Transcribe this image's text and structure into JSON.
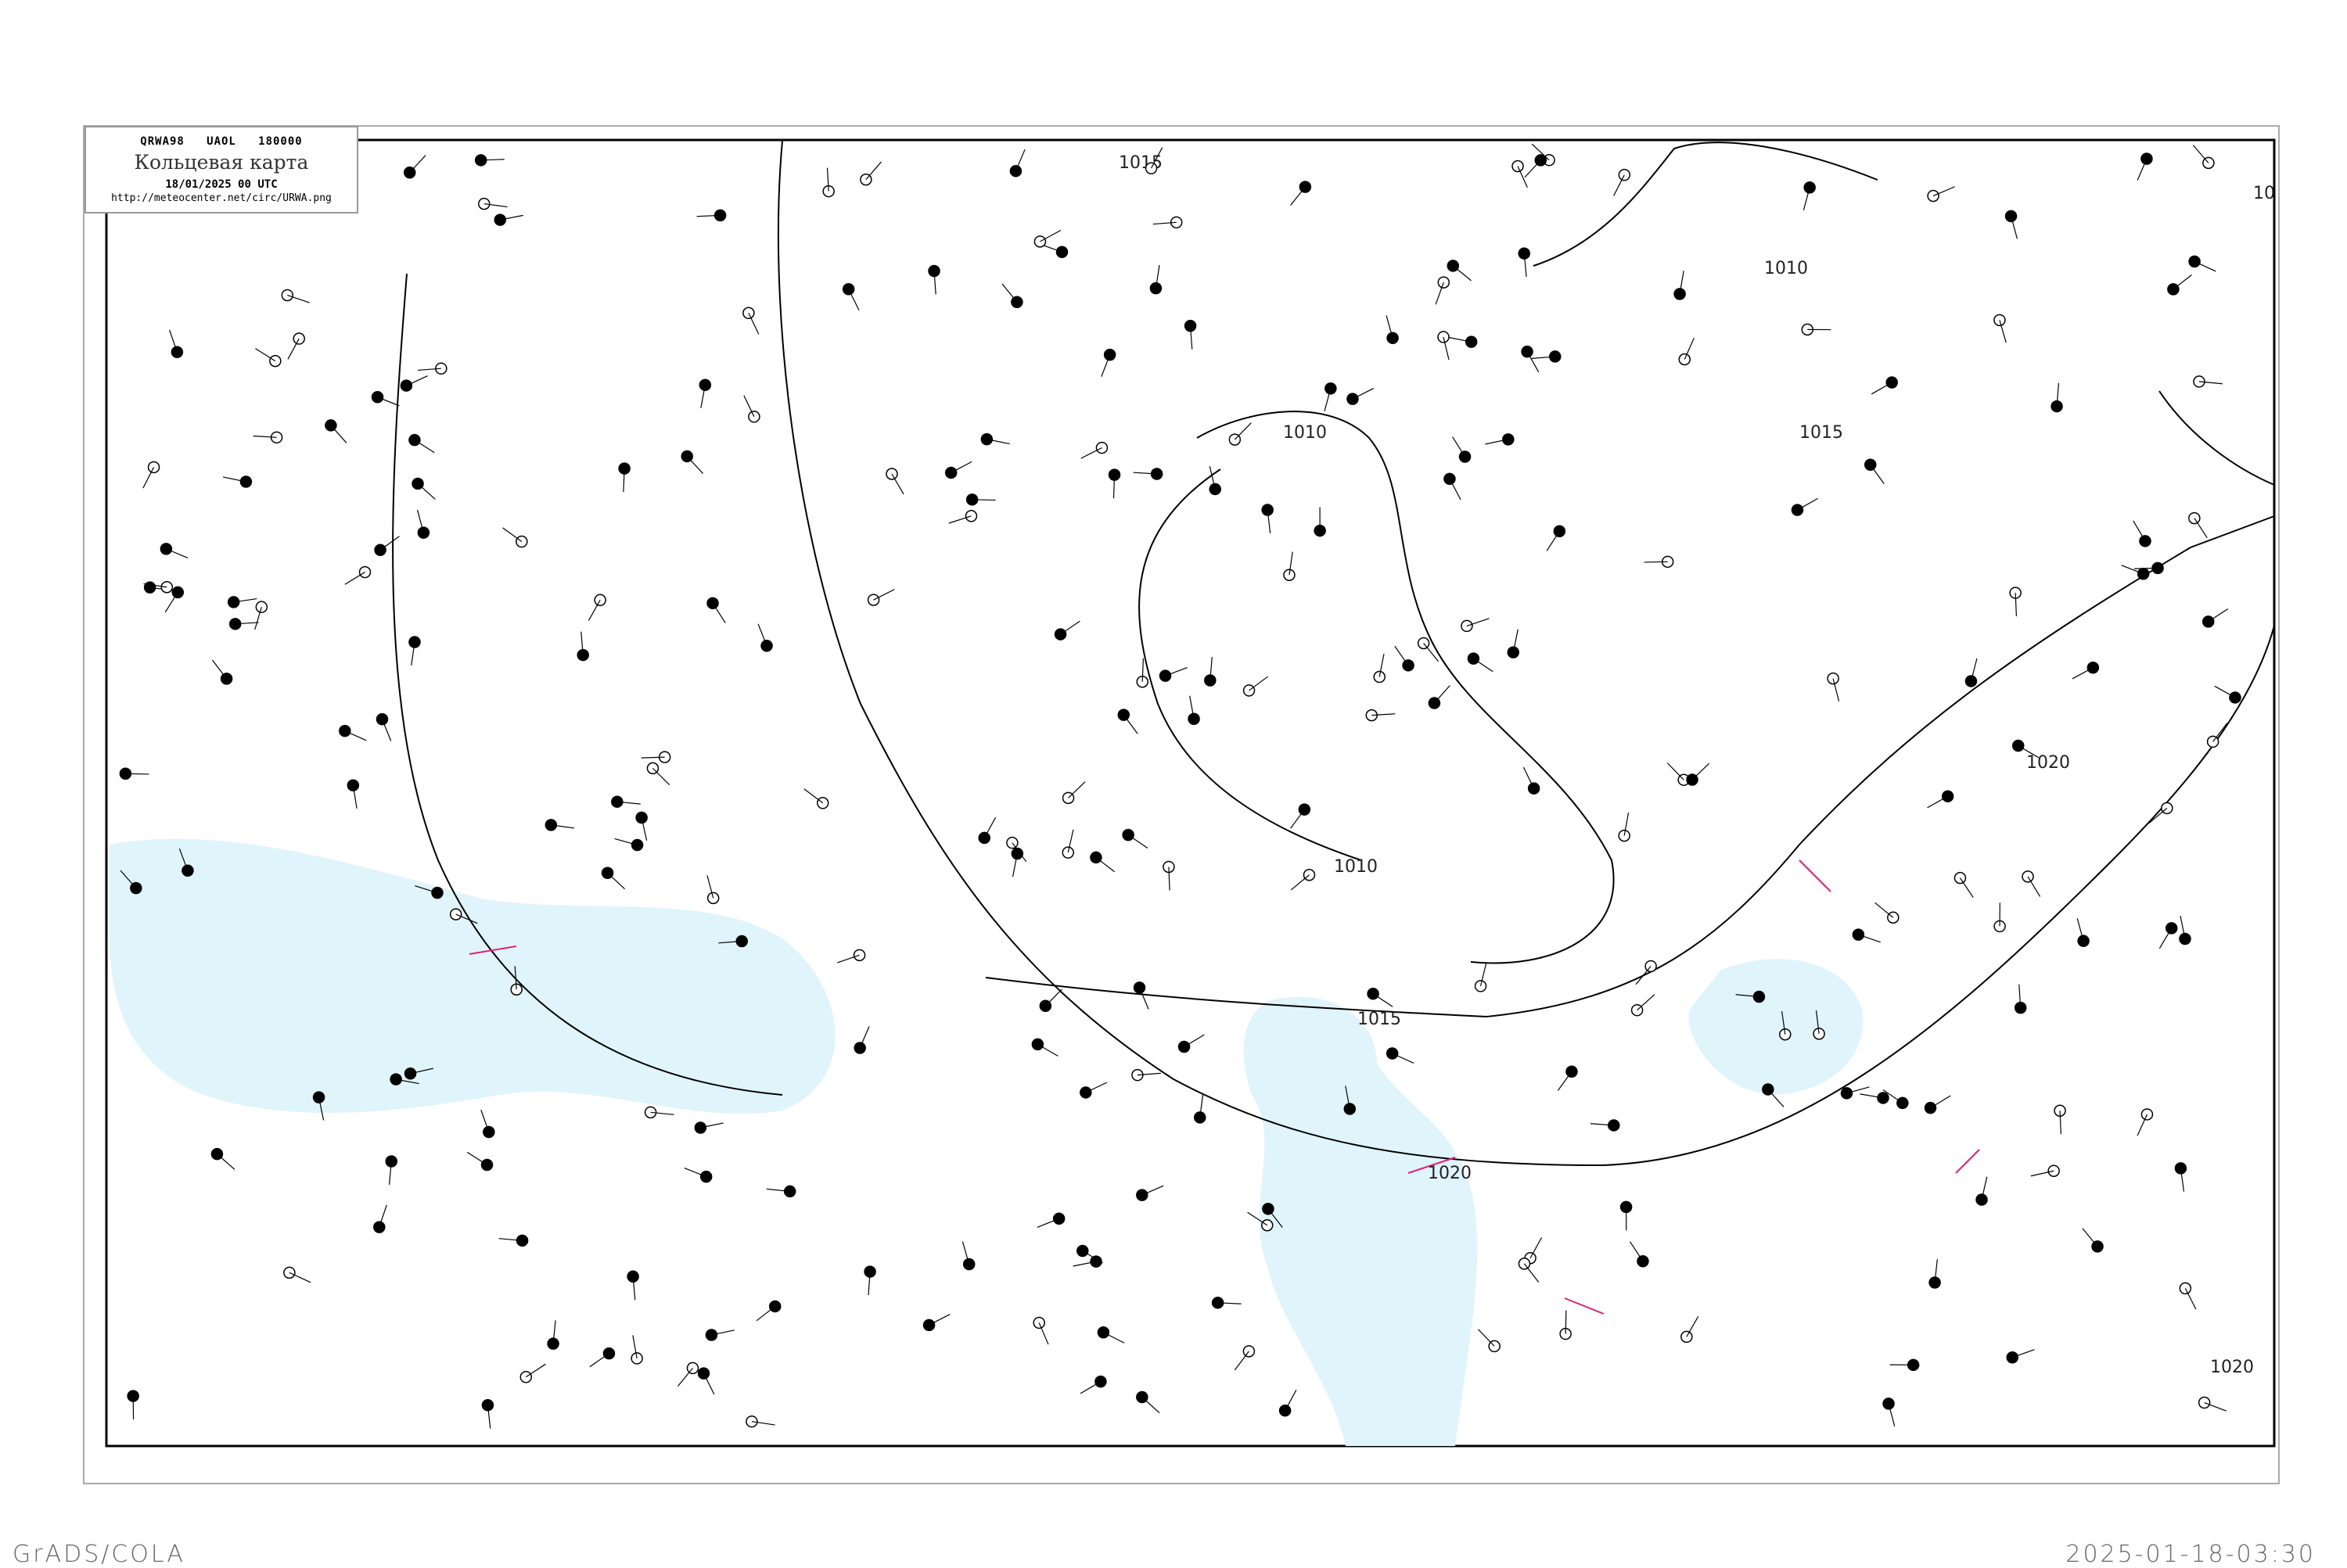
{
  "header": {
    "code": "QRWA98   UAOL   180000",
    "title": "Кольцевая карта",
    "datetime": "18/01/2025 00 UTC",
    "url": "http://meteocenter.net/circ/URWA.png"
  },
  "footer": {
    "left": "GrADS/COLA",
    "right": "2025-01-18-03:30"
  },
  "isobars": [
    {
      "label": "1010"
    },
    {
      "label": "1010"
    },
    {
      "label": "1015"
    },
    {
      "label": "1020"
    },
    {
      "label": "1010"
    },
    {
      "label": "1015"
    },
    {
      "label": "1020"
    },
    {
      "label": "1020"
    },
    {
      "label": "1015"
    },
    {
      "label": "10"
    }
  ],
  "colors": {
    "sea": "#e0f4fc",
    "isobar": "#000000",
    "front": "#e0207a",
    "river": "#6aa8e8",
    "frame": "#aaaaaa"
  }
}
